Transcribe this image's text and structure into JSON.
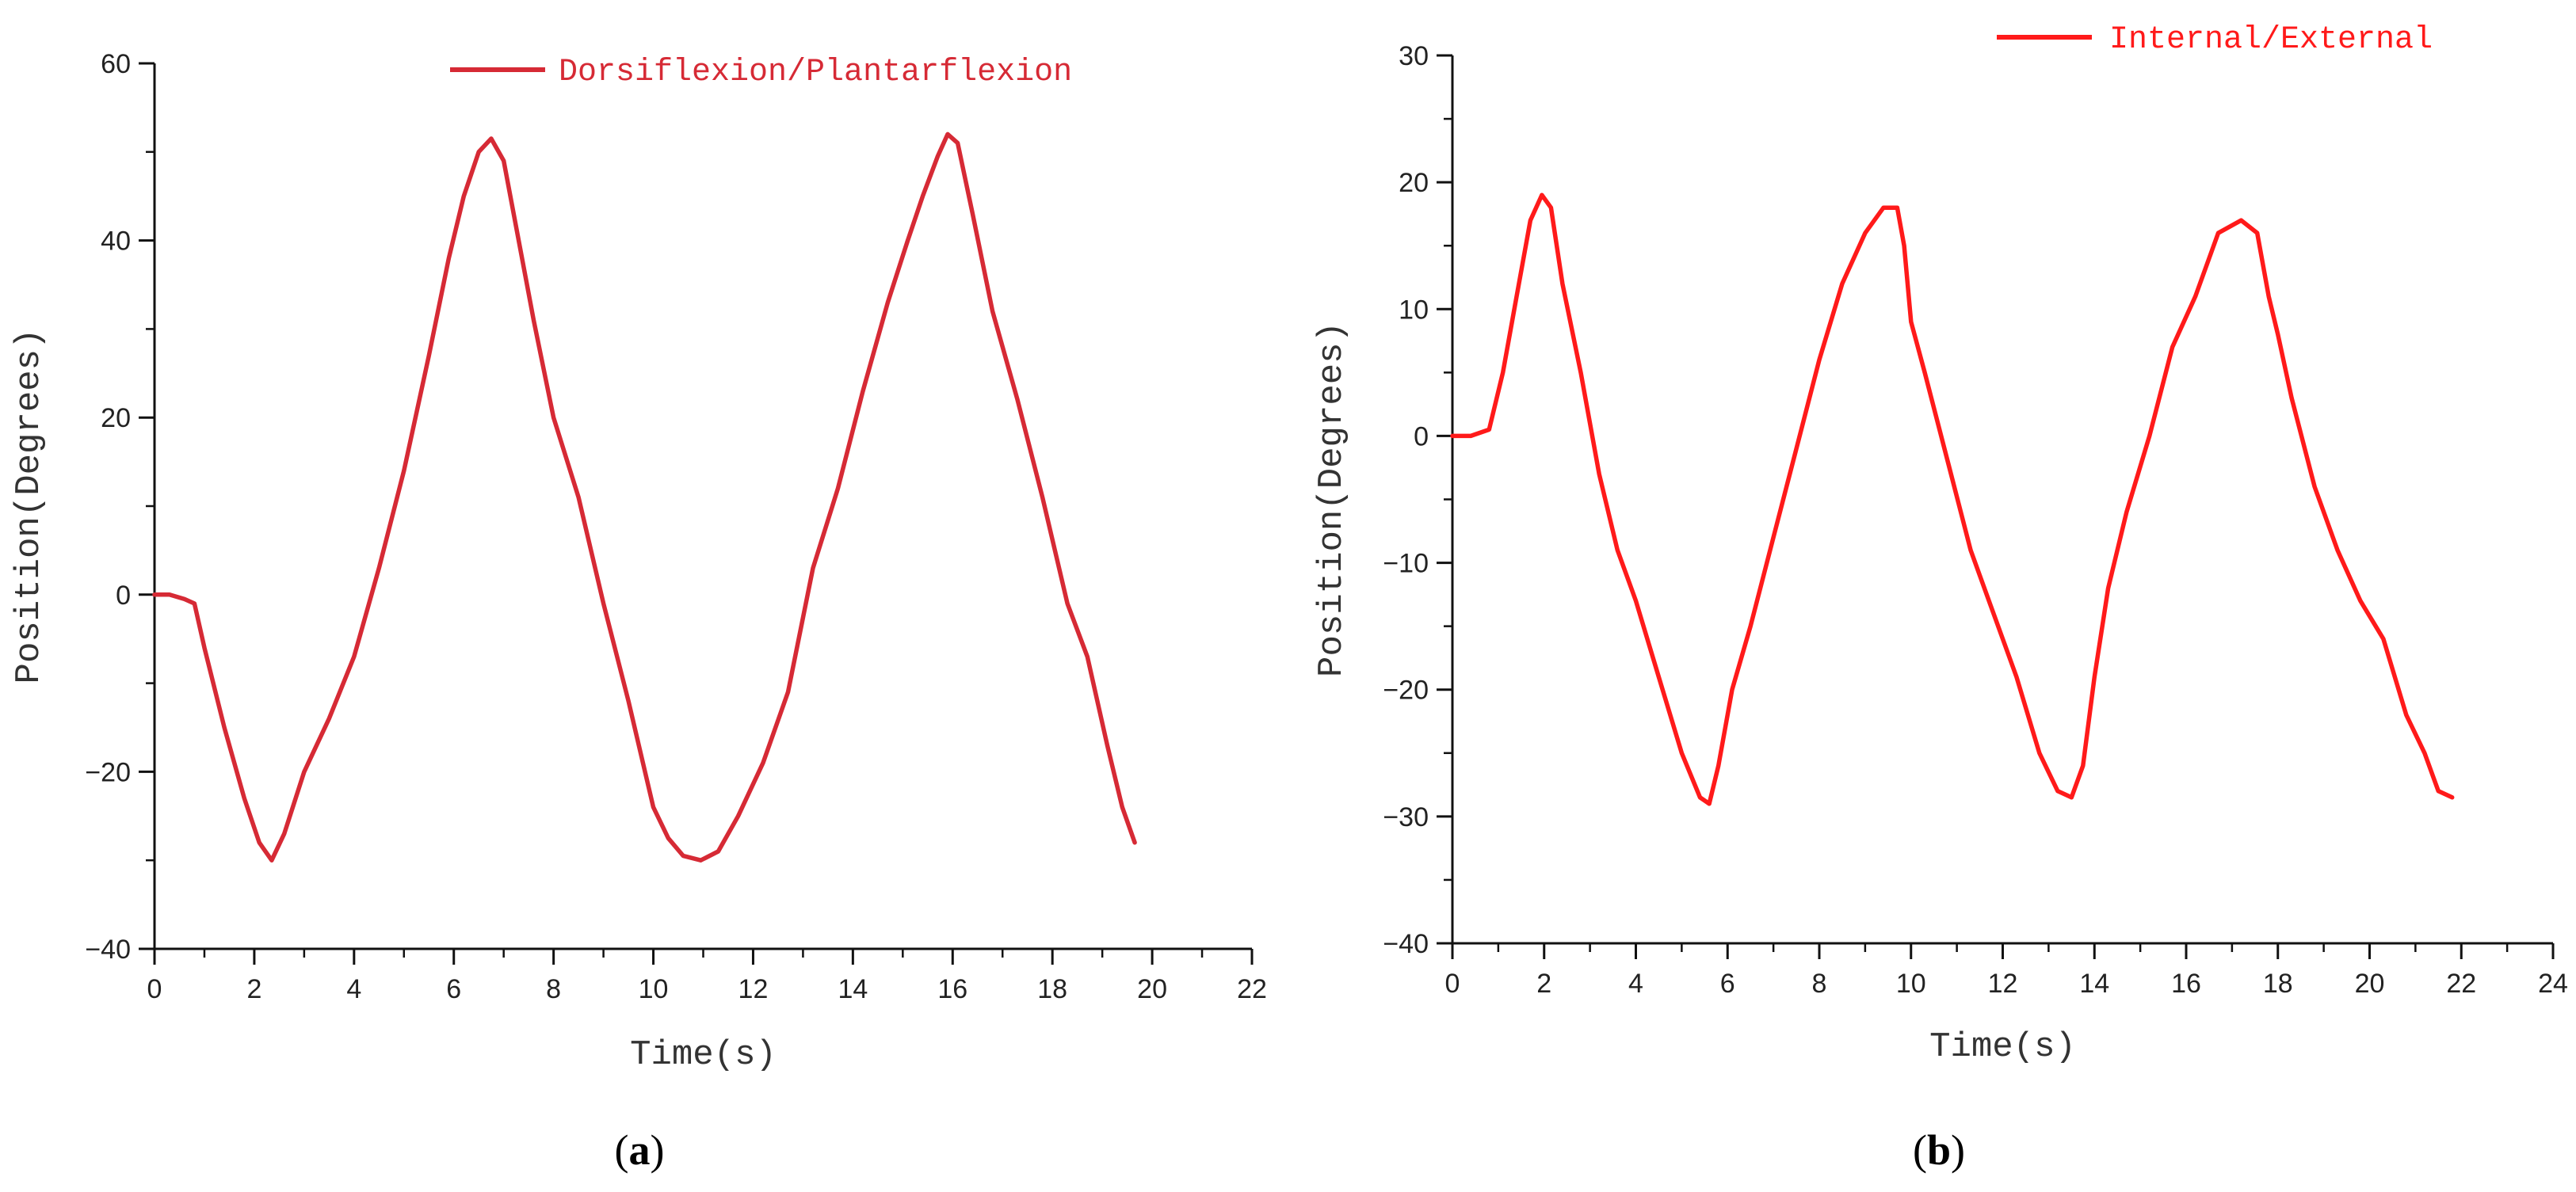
{
  "chart_data": [
    {
      "type": "line",
      "panel_label": {
        "open": "(",
        "letter": "a",
        "close": ")"
      },
      "xlabel": "Time(s)",
      "ylabel": "Position(Degrees)",
      "xlim": [
        0,
        22
      ],
      "ylim": [
        -40,
        60
      ],
      "xticks": [
        0,
        2,
        4,
        6,
        8,
        10,
        12,
        14,
        16,
        18,
        20,
        22
      ],
      "yticks": [
        -40,
        -20,
        0,
        20,
        40,
        60
      ],
      "ytick_labels": [
        "−40",
        "−20",
        "0",
        "20",
        "40",
        "60"
      ],
      "legend_position": "top-right",
      "grid": false,
      "series": [
        {
          "name": "Dorsiflexion/Plantarflexion",
          "color": "#d62a35",
          "x": [
            0,
            0.3,
            0.6,
            0.8,
            1.0,
            1.4,
            1.8,
            2.1,
            2.35,
            2.6,
            3.0,
            3.5,
            4.0,
            4.5,
            5.0,
            5.5,
            5.9,
            6.2,
            6.5,
            6.75,
            7.0,
            7.3,
            7.6,
            8.0,
            8.5,
            9.0,
            9.5,
            10.0,
            10.3,
            10.6,
            10.95,
            11.3,
            11.7,
            12.2,
            12.7,
            13.2,
            13.7,
            14.2,
            14.7,
            15.1,
            15.4,
            15.7,
            15.9,
            16.1,
            16.4,
            16.8,
            17.3,
            17.8,
            18.3,
            18.7,
            19.1,
            19.4,
            19.65
          ],
          "y": [
            0,
            0,
            -0.5,
            -1,
            -6,
            -15,
            -23,
            -28,
            -30,
            -27,
            -20,
            -14,
            -7,
            3,
            14,
            27,
            38,
            45,
            50,
            51.5,
            49,
            40,
            31,
            20,
            11,
            -1,
            -12,
            -24,
            -27.5,
            -29.5,
            -30,
            -29,
            -25,
            -19,
            -11,
            3,
            12,
            23,
            33,
            40,
            45,
            49.5,
            52,
            51,
            43,
            32,
            22,
            11,
            -1,
            -7,
            -17,
            -24,
            -28
          ]
        }
      ]
    },
    {
      "type": "line",
      "panel_label": {
        "open": "(",
        "letter": "b",
        "close": ")"
      },
      "xlabel": "Time(s)",
      "ylabel": "Position(Degrees)",
      "xlim": [
        0,
        24
      ],
      "ylim": [
        -40,
        30
      ],
      "xticks": [
        0,
        2,
        4,
        6,
        8,
        10,
        12,
        14,
        16,
        18,
        20,
        22,
        24
      ],
      "yticks": [
        -40,
        -30,
        -20,
        -10,
        0,
        10,
        20,
        30
      ],
      "ytick_labels": [
        "−40",
        "−30",
        "−20",
        "−10",
        "0",
        "10",
        "20",
        "30"
      ],
      "legend_position": "top-right",
      "grid": false,
      "series": [
        {
          "name": "Internal/External",
          "color": "#ff1a1a",
          "x": [
            0,
            0.4,
            0.8,
            1.1,
            1.4,
            1.7,
            1.95,
            2.15,
            2.4,
            2.8,
            3.2,
            3.6,
            4.0,
            4.5,
            5.0,
            5.4,
            5.6,
            5.8,
            6.1,
            6.5,
            7.0,
            7.5,
            8.0,
            8.5,
            9.0,
            9.4,
            9.7,
            9.85,
            10.0,
            10.3,
            10.8,
            11.3,
            11.8,
            12.3,
            12.8,
            13.2,
            13.5,
            13.75,
            14.0,
            14.3,
            14.7,
            15.2,
            15.7,
            16.2,
            16.7,
            17.2,
            17.55,
            17.8,
            18.0,
            18.3,
            18.8,
            19.3,
            19.8,
            20.3,
            20.8,
            21.2,
            21.5,
            21.8
          ],
          "y": [
            0,
            0,
            0.5,
            5,
            11,
            17,
            19,
            18,
            12,
            5,
            -3,
            -9,
            -13,
            -19,
            -25,
            -28.5,
            -29,
            -26,
            -20,
            -15,
            -8,
            -1,
            6,
            12,
            16,
            18,
            18,
            15,
            9,
            5,
            -2,
            -9,
            -14,
            -19,
            -25,
            -28,
            -28.5,
            -26,
            -19,
            -12,
            -6,
            0,
            7,
            11,
            16,
            17,
            16,
            11,
            8,
            3,
            -4,
            -9,
            -13,
            -16,
            -22,
            -25,
            -28,
            -28.5
          ]
        }
      ]
    }
  ]
}
